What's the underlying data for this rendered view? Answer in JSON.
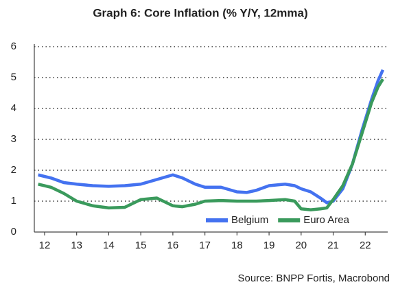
{
  "chart_data": {
    "type": "line",
    "title": "Graph 6: Core Inflation (% Y/Y, 12mma)",
    "source": "Source: BNPP Fortis, Macrobond",
    "x": [
      11.8,
      12.2,
      12.6,
      13.0,
      13.5,
      14.0,
      14.5,
      15.0,
      15.5,
      16.0,
      16.3,
      16.7,
      17.0,
      17.5,
      18.0,
      18.3,
      18.6,
      19.0,
      19.5,
      19.8,
      20.0,
      20.3,
      20.6,
      20.8,
      21.0,
      21.3,
      21.6,
      21.9,
      22.2,
      22.4,
      22.55
    ],
    "series": [
      {
        "name": "Belgium",
        "color": "#4472f0",
        "values": [
          1.85,
          1.75,
          1.6,
          1.55,
          1.5,
          1.48,
          1.5,
          1.55,
          1.7,
          1.85,
          1.75,
          1.55,
          1.45,
          1.45,
          1.3,
          1.28,
          1.35,
          1.5,
          1.55,
          1.5,
          1.4,
          1.3,
          1.1,
          0.95,
          1.0,
          1.4,
          2.2,
          3.3,
          4.3,
          4.9,
          5.25
        ]
      },
      {
        "name": "Euro Area",
        "color": "#3a9a5c",
        "values": [
          1.55,
          1.45,
          1.25,
          1.0,
          0.85,
          0.78,
          0.8,
          1.05,
          1.1,
          0.85,
          0.82,
          0.9,
          1.0,
          1.02,
          1.0,
          1.0,
          1.0,
          1.02,
          1.05,
          1.0,
          0.75,
          0.72,
          0.75,
          0.78,
          1.05,
          1.5,
          2.2,
          3.2,
          4.2,
          4.7,
          4.95
        ]
      }
    ],
    "xlim": [
      11.68,
      22.7
    ],
    "xticks": [
      12,
      13,
      14,
      15,
      16,
      17,
      18,
      19,
      20,
      21,
      22
    ],
    "ylim": [
      0,
      6
    ],
    "yticks": [
      0,
      1,
      2,
      3,
      4,
      5,
      6
    ],
    "grid": true,
    "legend": "lower right"
  }
}
